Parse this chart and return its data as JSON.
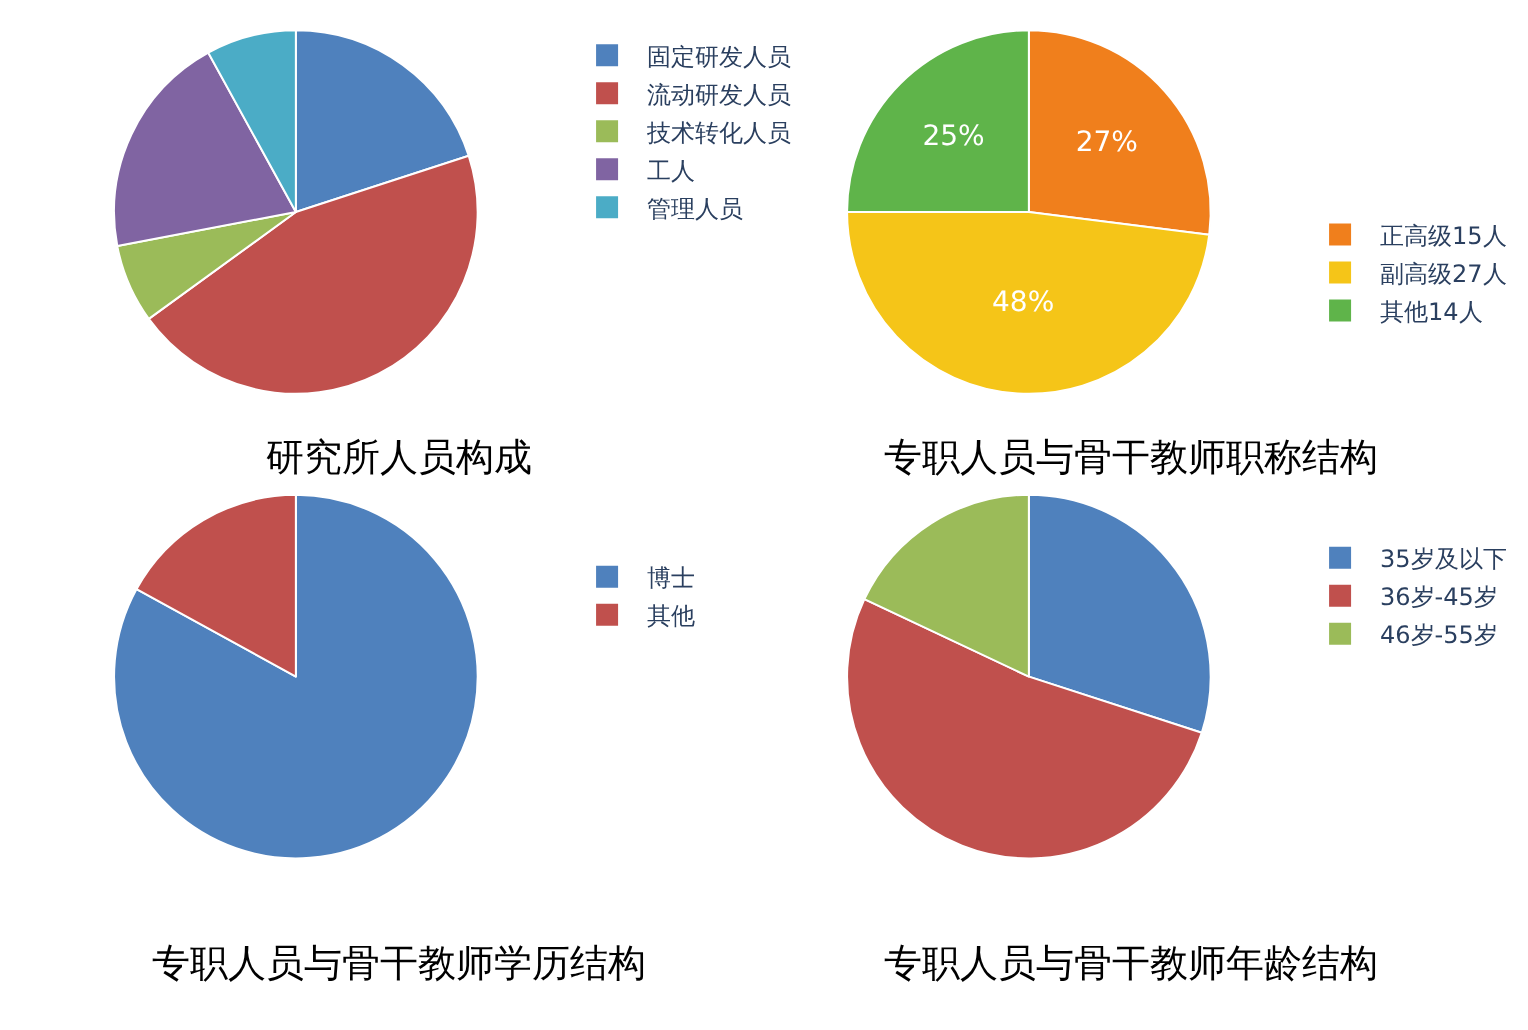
{
  "chart_data": [
    {
      "type": "pie",
      "title": "研究所人员构成",
      "categories": [
        "固定研发人员",
        "流动研发人员",
        "技术转化人员",
        "工人",
        "管理人员"
      ],
      "values": [
        20,
        45,
        7,
        20,
        8
      ],
      "colors": [
        "#4f81bd",
        "#c0504d",
        "#9bbb59",
        "#8064a2",
        "#4bacc6"
      ],
      "legend": "right"
    },
    {
      "type": "pie",
      "title": "专职人员与骨干教师职称结构",
      "categories": [
        "正高级15人",
        "副高级27人",
        "其他14人"
      ],
      "values": [
        27,
        48,
        25
      ],
      "value_labels": [
        "27%",
        "48%",
        "25%"
      ],
      "colors": [
        "#f07f1c",
        "#f5c518",
        "#5fb44a"
      ],
      "legend": "bottom right"
    },
    {
      "type": "pie",
      "title": "专职人员与骨干教师学历结构",
      "categories": [
        "博士",
        "其他"
      ],
      "values": [
        83,
        17
      ],
      "colors": [
        "#4f81bd",
        "#c0504d"
      ],
      "legend": "right"
    },
    {
      "type": "pie",
      "title": "专职人员与骨干教师年龄结构",
      "categories": [
        "35岁及以下",
        "36岁-45岁",
        "46岁-55岁"
      ],
      "values": [
        30,
        52,
        18
      ],
      "colors": [
        "#4f81bd",
        "#c0504d",
        "#9bbb59"
      ],
      "legend": "right"
    }
  ]
}
